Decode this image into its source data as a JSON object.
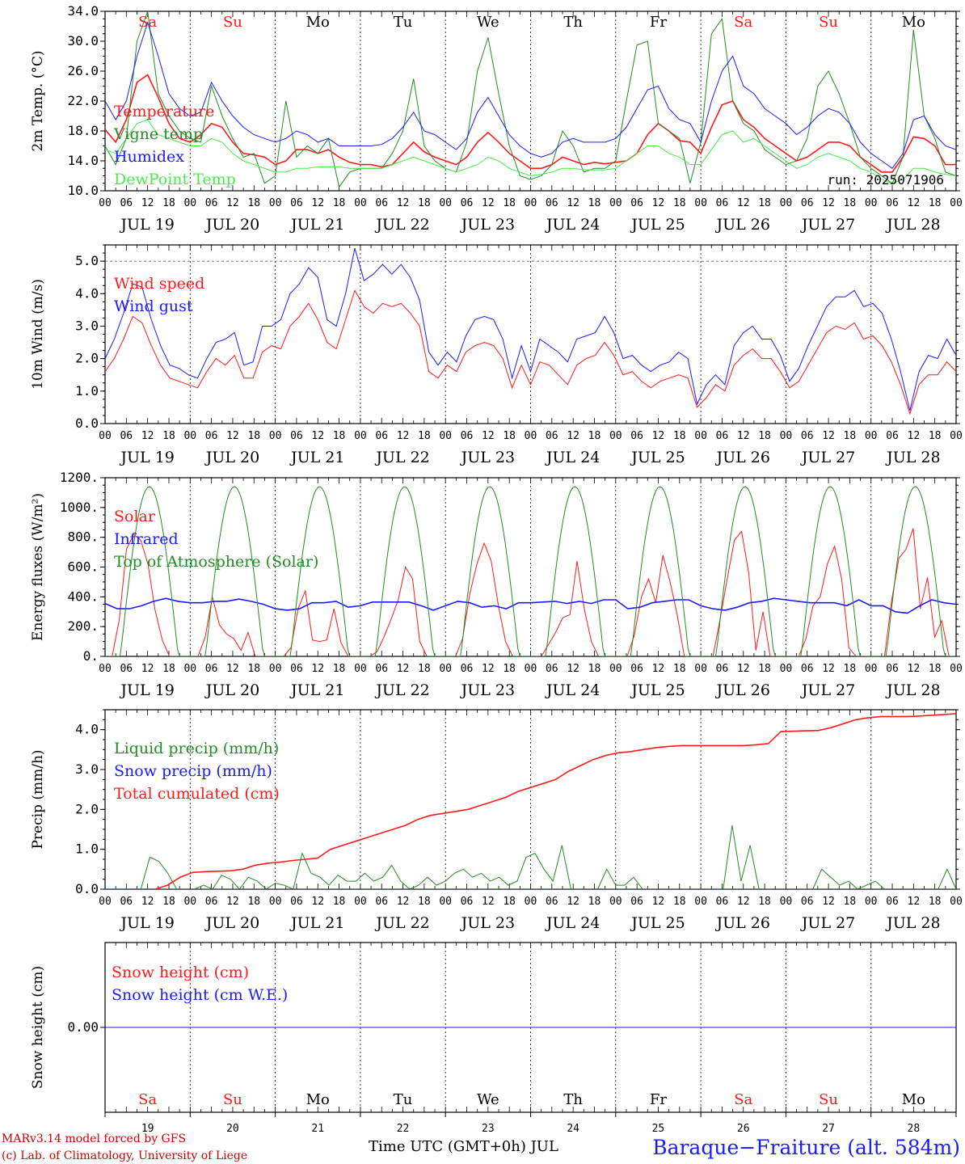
{
  "colors": {
    "red": "#ff1a1a",
    "blue": "#1a1aff",
    "green": "#228b22",
    "lightgreen": "#44ee44",
    "weekend": "#ff1a1a",
    "weekday": "#000000"
  },
  "x_axis": {
    "hour_ticks": [
      "00",
      "06",
      "12",
      "18"
    ],
    "last_tick": "00",
    "dates": [
      "JUL 19",
      "JUL 20",
      "JUL 21",
      "JUL 22",
      "JUL 23",
      "JUL 24",
      "JUL 25",
      "JUL 26",
      "JUL 27",
      "JUL 28"
    ],
    "day_names": [
      "Sa",
      "Su",
      "Mo",
      "Tu",
      "We",
      "Th",
      "Fr",
      "Sa",
      "Su",
      "Mo"
    ],
    "weekend": [
      true,
      true,
      false,
      false,
      false,
      false,
      false,
      true,
      true,
      false
    ],
    "day_numbers": [
      "19",
      "20",
      "21",
      "22",
      "23",
      "24",
      "25",
      "26",
      "27",
      "28"
    ]
  },
  "run_label": "run: 2025071906",
  "footer": {
    "line1": "MARv3.14 model forced by GFS",
    "line2": "(c) Lab. of Climatology, University of Liege",
    "center": "Time UTC (GMT+0h) JUL",
    "station": "Baraque−Fraiture (alt. 584m)"
  },
  "chart_data": [
    {
      "type": "line",
      "ylabel": "2m Temp. (°C)",
      "yticks": [
        "34.0",
        "30.0",
        "26.0",
        "22.0",
        "18.0",
        "14.0",
        "10.0"
      ],
      "ylim": [
        10,
        34
      ],
      "series": [
        {
          "name": "Temperature",
          "color": "#ff1a1a",
          "values": [
            18.2,
            16.5,
            19.5,
            24.5,
            25.5,
            22.5,
            19,
            17,
            16.5,
            17.5,
            19,
            18.5,
            16.5,
            15,
            14.8,
            14.5,
            13.5,
            14,
            15.5,
            15.5,
            15,
            15.5,
            14.5,
            13.8,
            13.5,
            13.5,
            13.2,
            13.5,
            15,
            16.5,
            15.2,
            14.5,
            14,
            13.5,
            14.5,
            16.5,
            17.8,
            16.5,
            15,
            14,
            13,
            13,
            13.5,
            14.5,
            14,
            13.5,
            13.8,
            13.6,
            13.8,
            14,
            15,
            17.5,
            19,
            18,
            16.7,
            16.5,
            15,
            18.5,
            21.5,
            22,
            19.5,
            18.5,
            17,
            16,
            15,
            14,
            14.5,
            15.5,
            16.5,
            16.5,
            16,
            14.5,
            13.5,
            12.5,
            12.5,
            14.5,
            17.2,
            17,
            16,
            13.5,
            13.5
          ]
        },
        {
          "name": "Vigne temp",
          "color": "#228b22",
          "values": [
            16,
            13.5,
            17,
            30,
            34,
            23,
            20,
            18,
            17,
            16.5,
            24,
            20,
            17,
            14.5,
            15,
            11,
            12,
            22,
            14.5,
            16,
            15,
            17,
            10.5,
            12.5,
            13,
            13,
            13,
            15,
            18,
            25,
            16,
            14,
            13,
            12.5,
            16.5,
            26,
            30.5,
            23,
            16,
            12,
            11.5,
            12,
            13.5,
            18,
            16,
            12.5,
            13,
            13,
            14,
            22,
            29.5,
            30,
            19,
            18,
            17,
            11,
            16.5,
            31,
            33,
            22,
            19,
            18,
            15.5,
            14.5,
            13.5,
            14,
            17,
            24,
            26,
            23,
            19,
            14.5,
            13,
            12,
            11,
            14.5,
            31.5,
            20,
            17,
            12.5,
            12
          ]
        },
        {
          "name": "Humidex",
          "color": "#1a1aff",
          "values": [
            22,
            19.5,
            22,
            28,
            32.5,
            28,
            23,
            21,
            20,
            20.5,
            24.5,
            22,
            20,
            18.5,
            17.5,
            17,
            16.5,
            17,
            18,
            17.5,
            16.5,
            17,
            16,
            16,
            16,
            16,
            16.2,
            17,
            18.5,
            20.5,
            18,
            17.5,
            16.5,
            15.5,
            17,
            20.5,
            22.5,
            20,
            17.5,
            16,
            15,
            14.5,
            15,
            16.5,
            17,
            16.5,
            16.5,
            16.5,
            17,
            18.5,
            21,
            23.5,
            24,
            21,
            19.5,
            19,
            16.5,
            22,
            26,
            28,
            24,
            23,
            21,
            20,
            19,
            17.5,
            18.5,
            20,
            21,
            20.5,
            19,
            16.5,
            15,
            14,
            13,
            15,
            19.5,
            20,
            17.5,
            16,
            15.5
          ]
        },
        {
          "name": "DewPoint Temp",
          "color": "#44ee44",
          "values": [
            15.5,
            15,
            17,
            19,
            19.5,
            17.5,
            17,
            16.5,
            16,
            16,
            17,
            16.5,
            15,
            14,
            13.5,
            13,
            12.5,
            12.5,
            13,
            13,
            13.2,
            13.2,
            13.2,
            13,
            13,
            13,
            13,
            13.5,
            14,
            14.5,
            14,
            13.5,
            13,
            12.5,
            13,
            13.5,
            14.5,
            14,
            13,
            12.5,
            12,
            12.2,
            12.5,
            13,
            13,
            12.8,
            12.8,
            12.8,
            13,
            14,
            15,
            16,
            16,
            15,
            14.5,
            13.5,
            13.5,
            15.5,
            17.5,
            18,
            16.5,
            17,
            16,
            15,
            14,
            13,
            13.5,
            14.5,
            15,
            14.5,
            14,
            13,
            12.5,
            11.5,
            11,
            11.5,
            13,
            13,
            12.5,
            12.2,
            12
          ]
        }
      ]
    },
    {
      "type": "line",
      "ylabel": "10m Wind (m/s)",
      "yticks": [
        "5.0",
        "4.0",
        "3.0",
        "2.0",
        "1.0",
        "0.0"
      ],
      "ylim": [
        0,
        5.5
      ],
      "series": [
        {
          "name": "Wind speed",
          "color": "#ff1a1a",
          "values": [
            1.6,
            2,
            2.6,
            3.3,
            3.1,
            2.4,
            1.8,
            1.4,
            1.3,
            1.2,
            1.1,
            1.6,
            2,
            1.8,
            2.1,
            1.4,
            1.4,
            2.2,
            2.4,
            2.3,
            3,
            3.3,
            3.7,
            3.2,
            2.5,
            2.3,
            3.2,
            4.1,
            3.6,
            3.4,
            3.7,
            3.6,
            3.7,
            3.4,
            3,
            1.6,
            1.4,
            1.8,
            1.6,
            2.2,
            2.4,
            2.5,
            2.4,
            2,
            1.1,
            1.8,
            1.2,
            1.9,
            1.8,
            1.5,
            1.2,
            1.8,
            2,
            2.1,
            2.5,
            2.1,
            1.5,
            1.6,
            1.3,
            1.1,
            1.3,
            1.4,
            1.5,
            1.4,
            0.5,
            0.8,
            1.2,
            1,
            1.8,
            2.1,
            2.3,
            2,
            2,
            1.6,
            1.1,
            1.3,
            1.8,
            2.3,
            2.8,
            3,
            2.9,
            3.1,
            2.6,
            2.7,
            2.4,
            1.9,
            1.2,
            0.3,
            1.2,
            1.5,
            1.5,
            1.9,
            1.6
          ]
        },
        {
          "name": "Wind gust",
          "color": "#1a1aff",
          "values": [
            2,
            2.6,
            3.4,
            4.3,
            4.2,
            3.2,
            2.4,
            1.8,
            1.7,
            1.5,
            1.4,
            2,
            2.5,
            2.6,
            2.8,
            1.8,
            1.9,
            3,
            3,
            3.2,
            4,
            4.3,
            4.8,
            4.5,
            3.2,
            3,
            4,
            5.4,
            4.4,
            4.6,
            4.9,
            4.6,
            4.9,
            4.5,
            3.8,
            2.2,
            1.8,
            2.2,
            1.9,
            2.7,
            3.2,
            3.3,
            3.2,
            2.6,
            1.4,
            2.4,
            1.6,
            2.6,
            2.4,
            2.2,
            1.9,
            2.6,
            2.7,
            2.8,
            3.3,
            2.8,
            2,
            2.1,
            1.8,
            1.6,
            1.8,
            1.9,
            2.2,
            2,
            0.6,
            1.2,
            1.5,
            1.2,
            2.4,
            2.8,
            3,
            2.6,
            2.6,
            2.1,
            1.3,
            1.7,
            2.4,
            3,
            3.6,
            3.9,
            3.9,
            4.1,
            3.6,
            3.7,
            3.4,
            2.6,
            1.6,
            0.4,
            1.6,
            2.1,
            2,
            2.6,
            2.1
          ]
        }
      ]
    },
    {
      "type": "line",
      "ylabel": "Energy fluxes (W/m²)",
      "yticks": [
        "1200.",
        "1000.",
        "800.",
        "600.",
        "400.",
        "200.",
        "0."
      ],
      "ylim": [
        0,
        1200
      ],
      "series": [
        {
          "name": "Solar",
          "color": "#ff1a1a",
          "day_values": [
            [
              0,
              0,
              250,
              720,
              820,
              780,
              620,
              310,
              110,
              0,
              0,
              0
            ],
            [
              0,
              0,
              130,
              400,
              210,
              150,
              120,
              40,
              160,
              0,
              0,
              0
            ],
            [
              0,
              0,
              60,
              320,
              440,
              110,
              100,
              110,
              320,
              90,
              0,
              0
            ],
            [
              0,
              0,
              30,
              130,
              250,
              380,
              600,
              520,
              100,
              0,
              0,
              0
            ],
            [
              0,
              0,
              120,
              420,
              620,
              760,
              640,
              340,
              100,
              0,
              0,
              0
            ],
            [
              0,
              0,
              80,
              160,
              260,
              280,
              640,
              320,
              100,
              0,
              0,
              0
            ],
            [
              0,
              0,
              140,
              400,
              520,
              360,
              680,
              500,
              280,
              0,
              0,
              0
            ],
            [
              0,
              0,
              250,
              520,
              780,
              840,
              560,
              40,
              300,
              0,
              0,
              0
            ],
            [
              0,
              0,
              120,
              340,
              400,
              620,
              740,
              520,
              60,
              0,
              0,
              0
            ],
            [
              0,
              0,
              380,
              660,
              720,
              860,
              320,
              530,
              130,
              240,
              0,
              0
            ]
          ]
        },
        {
          "name": "Infrared",
          "color": "#1a1aff",
          "values": [
            355,
            320,
            320,
            340,
            370,
            390,
            370,
            360,
            360,
            370,
            370,
            385,
            370,
            350,
            320,
            310,
            320,
            360,
            360,
            370,
            330,
            340,
            365,
            365,
            365,
            365,
            340,
            310,
            340,
            370,
            360,
            330,
            340,
            320,
            360,
            360,
            365,
            370,
            355,
            370,
            355,
            380,
            380,
            320,
            330,
            360,
            370,
            380,
            380,
            340,
            320,
            310,
            330,
            360,
            370,
            390,
            380,
            370,
            360,
            360,
            360,
            340,
            380,
            340,
            340,
            300,
            290,
            340,
            380,
            360,
            350
          ]
        },
        {
          "name": "Top of Atmosphere (Solar)",
          "color": "#228b22",
          "peak": 1140
        }
      ]
    },
    {
      "type": "line",
      "ylabel": "Precip (mm/h)",
      "yticks": [
        "4.0",
        "3.0",
        "2.0",
        "1.0",
        "0.0"
      ],
      "ylim": [
        0,
        4.5
      ],
      "series": [
        {
          "name": "Liquid precip (mm/h)",
          "color": "#228b22",
          "values": [
            0,
            0,
            0,
            0,
            0,
            0.8,
            0.7,
            0.4,
            0,
            0,
            0,
            0.1,
            0,
            0.35,
            0.25,
            0,
            0.3,
            0.2,
            0,
            0.15,
            0.1,
            0,
            0.9,
            0.4,
            0.3,
            0.1,
            0.35,
            0.2,
            0.2,
            0.4,
            0.2,
            0.3,
            0.6,
            0.2,
            0,
            0.1,
            0.3,
            0.1,
            0.2,
            0.4,
            0.5,
            0.3,
            0.4,
            0.2,
            0.3,
            0.1,
            0.2,
            0.8,
            0.9,
            0.5,
            0.2,
            1.1,
            0,
            0,
            0,
            0,
            0.5,
            0.1,
            0.1,
            0.3,
            0,
            0,
            0,
            0,
            0,
            0,
            0,
            0,
            0,
            0,
            1.6,
            0.2,
            1.1,
            0,
            0,
            0,
            0,
            0,
            0,
            0,
            0.5,
            0.3,
            0.1,
            0.2,
            0,
            0.1,
            0.2,
            0,
            0,
            0,
            0,
            0,
            0,
            0,
            0.5,
            0
          ]
        },
        {
          "name": "Snow precip (mm/h)",
          "color": "#1a1aff",
          "values": [
            0,
            0
          ]
        },
        {
          "name": "Total cumulated (cm)",
          "color": "#ff1a1a",
          "values": [
            0,
            0,
            0,
            0,
            0,
            0.1,
            0.3,
            0.42,
            0.44,
            0.45,
            0.46,
            0.5,
            0.6,
            0.65,
            0.68,
            0.72,
            0.75,
            0.78,
            1,
            1.1,
            1.2,
            1.3,
            1.4,
            1.5,
            1.6,
            1.75,
            1.85,
            1.9,
            1.95,
            2,
            2.1,
            2.2,
            2.3,
            2.45,
            2.55,
            2.65,
            2.75,
            2.95,
            3.1,
            3.25,
            3.35,
            3.42,
            3.45,
            3.5,
            3.55,
            3.58,
            3.6,
            3.6,
            3.6,
            3.6,
            3.6,
            3.6,
            3.62,
            3.65,
            3.95,
            3.96,
            3.97,
            3.98,
            4.05,
            4.15,
            4.25,
            4.3,
            4.33,
            4.33,
            4.33,
            4.34,
            4.36,
            4.38,
            4.4
          ]
        }
      ]
    },
    {
      "type": "line",
      "ylabel": "Snow height (cm)",
      "yticks": [
        "0.00"
      ],
      "ylim": [
        -1,
        1
      ],
      "series": [
        {
          "name": "Snow height (cm)",
          "color": "#ff1a1a",
          "values": [
            0,
            0
          ]
        },
        {
          "name": "Snow height (cm W.E.)",
          "color": "#1a1aff",
          "values": [
            0,
            0
          ]
        }
      ]
    }
  ]
}
